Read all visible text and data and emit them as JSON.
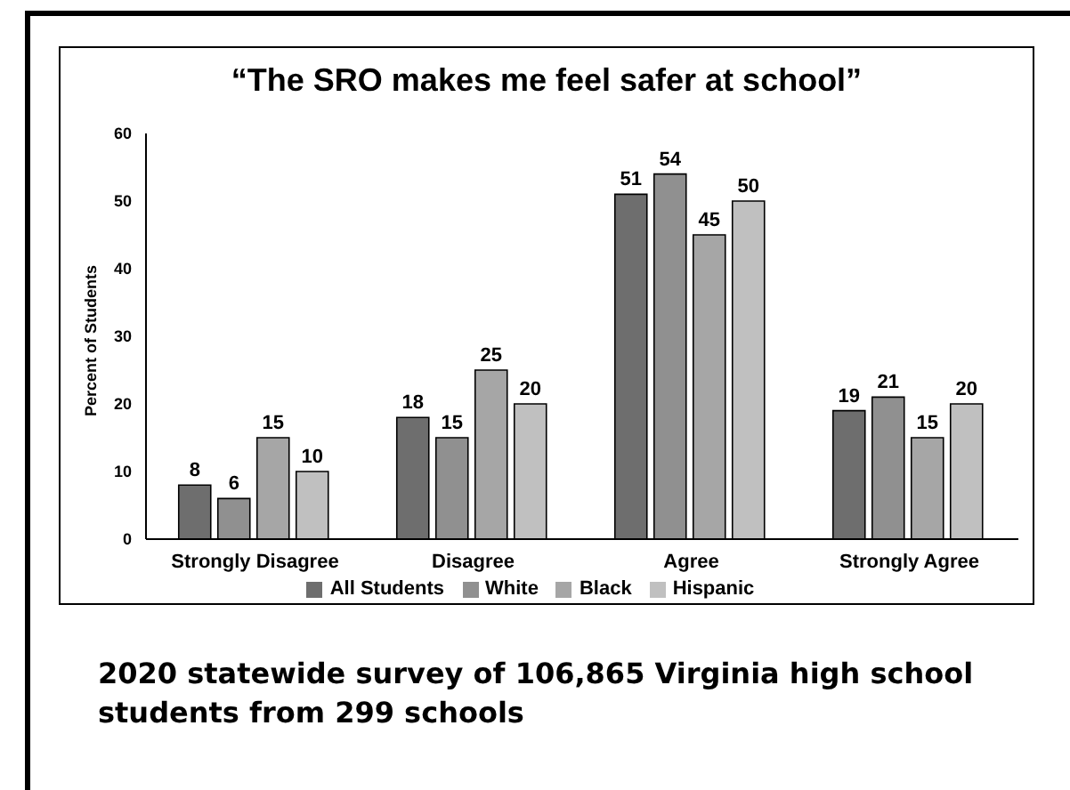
{
  "chart_data": {
    "type": "bar",
    "title": "“The SRO makes me feel safer at school”",
    "ylabel": "Percent of Students",
    "categories": [
      "Strongly Disagree",
      "Disagree",
      "Agree",
      "Strongly Agree"
    ],
    "series": [
      {
        "name": "All Students",
        "color": "#6e6e6e",
        "values": [
          8,
          18,
          51,
          19
        ]
      },
      {
        "name": "White",
        "color": "#909090",
        "values": [
          6,
          15,
          54,
          21
        ]
      },
      {
        "name": "Black",
        "color": "#a6a6a6",
        "values": [
          15,
          25,
          45,
          15
        ]
      },
      {
        "name": "Hispanic",
        "color": "#c0c0c0",
        "values": [
          10,
          20,
          50,
          20
        ]
      }
    ],
    "ylim": [
      0,
      60
    ],
    "yticks": [
      0,
      10,
      20,
      30,
      40,
      50,
      60
    ],
    "grid": false,
    "legend": "bottom",
    "data_labels": true,
    "annotations": [
      "2020 statewide survey of 106,865 Virginia high school students from 299 schools"
    ]
  }
}
